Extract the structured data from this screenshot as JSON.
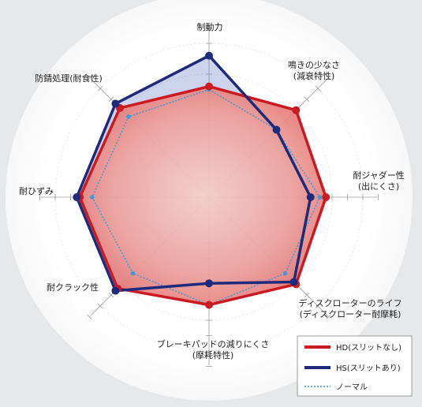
{
  "chart_data": {
    "type": "radar",
    "axes": [
      {
        "key": "braking",
        "label_lines": [
          "制動力"
        ]
      },
      {
        "key": "squeal",
        "label_lines": [
          "鳴きの少なさ",
          "(減衰特性)"
        ]
      },
      {
        "key": "judder",
        "label_lines": [
          "耐ジャダー性",
          "(出にくさ)"
        ]
      },
      {
        "key": "rotor_life",
        "label_lines": [
          "ディスクローターのライフ",
          "(ディスクローター耐摩耗)"
        ]
      },
      {
        "key": "pad_life",
        "label_lines": [
          "ブレーキパッドの減りにくさ",
          "(摩耗特性)"
        ]
      },
      {
        "key": "crack",
        "label_lines": [
          "耐クラック性"
        ]
      },
      {
        "key": "fade",
        "label_lines": [
          "耐ひずみ"
        ]
      },
      {
        "key": "rust",
        "label_lines": [
          "防錆処理(耐食性)"
        ]
      }
    ],
    "scale_max": 5,
    "series": [
      {
        "name": "HD(スリットなし)",
        "color": "#cc1a22",
        "fill": "#e86a6a",
        "style": "solid",
        "values": [
          3.6,
          4.0,
          3.8,
          4.0,
          3.5,
          4.2,
          4.2,
          4.1
        ]
      },
      {
        "name": "HS(スリットあり)",
        "color": "#1f2a7a",
        "fill": "#6f80c8",
        "style": "solid",
        "values": [
          4.6,
          3.1,
          3.3,
          3.9,
          2.8,
          4.3,
          4.3,
          4.3
        ]
      },
      {
        "name": "ノーマル",
        "color": "#3f9ad6",
        "style": "dotted",
        "values": [
          3.5,
          3.1,
          3.6,
          3.5,
          3.5,
          3.5,
          3.8,
          3.7
        ]
      }
    ]
  }
}
